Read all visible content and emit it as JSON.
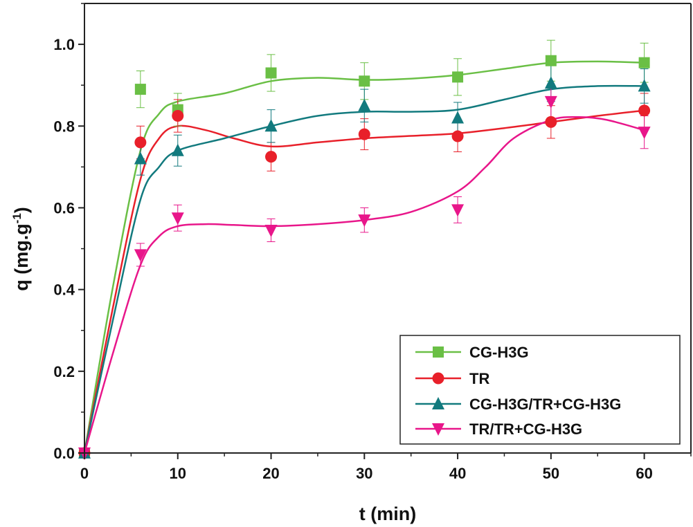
{
  "chart_data": {
    "type": "scatter",
    "xlabel": "t (min)",
    "ylabel_main": "q (mg.g",
    "ylabel_sup": "-1",
    "ylabel_close": ")",
    "xlim": [
      0,
      65
    ],
    "ylim": [
      0,
      1.1
    ],
    "xticks": [
      0,
      10,
      20,
      30,
      40,
      50,
      60
    ],
    "yticks": [
      0.0,
      0.2,
      0.4,
      0.6,
      0.8,
      1.0
    ],
    "ytick_labels": [
      "0.0",
      "0.2",
      "0.4",
      "0.6",
      "0.8",
      "1.0"
    ],
    "legend_position": "bottom-right",
    "series": [
      {
        "name": "CG-H3G",
        "color": "#6abf45",
        "marker": "square",
        "x": [
          0,
          6,
          10,
          20,
          30,
          40,
          50,
          60
        ],
        "y": [
          0.0,
          0.89,
          0.84,
          0.93,
          0.91,
          0.92,
          0.96,
          0.955
        ],
        "err": [
          0,
          0.045,
          0.04,
          0.045,
          0.045,
          0.045,
          0.05,
          0.048
        ],
        "fit_x": [
          0,
          3,
          6,
          8,
          10,
          15,
          20,
          25,
          30,
          35,
          40,
          45,
          50,
          55,
          60
        ],
        "fit_y": [
          0,
          0.4,
          0.74,
          0.83,
          0.86,
          0.88,
          0.91,
          0.918,
          0.913,
          0.916,
          0.925,
          0.94,
          0.955,
          0.958,
          0.955
        ]
      },
      {
        "name": "TR",
        "color": "#e8202a",
        "marker": "circle",
        "x": [
          0,
          6,
          10,
          20,
          30,
          40,
          50,
          60
        ],
        "y": [
          0.0,
          0.76,
          0.825,
          0.725,
          0.78,
          0.775,
          0.81,
          0.838
        ],
        "err": [
          0,
          0.04,
          0.04,
          0.035,
          0.038,
          0.038,
          0.04,
          0.042
        ],
        "fit_x": [
          0,
          3,
          6,
          8,
          10,
          13,
          16,
          20,
          25,
          30,
          35,
          40,
          45,
          50,
          55,
          60
        ],
        "fit_y": [
          0,
          0.35,
          0.67,
          0.77,
          0.8,
          0.79,
          0.77,
          0.75,
          0.76,
          0.77,
          0.776,
          0.782,
          0.795,
          0.81,
          0.825,
          0.838
        ]
      },
      {
        "name": "CG-H3G/TR+CG-H3G",
        "color": "#127a7e",
        "marker": "triangle-up",
        "x": [
          0,
          6,
          10,
          20,
          30,
          40,
          50,
          60
        ],
        "y": [
          0.0,
          0.72,
          0.74,
          0.8,
          0.85,
          0.82,
          0.905,
          0.898
        ],
        "err": [
          0,
          0.04,
          0.038,
          0.04,
          0.04,
          0.038,
          0.045,
          0.042
        ],
        "fit_x": [
          0,
          3,
          6,
          8,
          10,
          15,
          20,
          25,
          30,
          35,
          40,
          45,
          50,
          55,
          60
        ],
        "fit_y": [
          0,
          0.32,
          0.62,
          0.7,
          0.74,
          0.77,
          0.8,
          0.825,
          0.835,
          0.835,
          0.84,
          0.865,
          0.89,
          0.898,
          0.898
        ]
      },
      {
        "name": "TR/TR+CG-H3G",
        "color": "#e8168a",
        "marker": "triangle-down",
        "x": [
          0,
          6,
          10,
          20,
          30,
          40,
          50,
          60
        ],
        "y": [
          0.0,
          0.485,
          0.575,
          0.545,
          0.57,
          0.595,
          0.86,
          0.785
        ],
        "err": [
          0,
          0.028,
          0.032,
          0.028,
          0.03,
          0.032,
          0.04,
          0.04
        ],
        "fit_x": [
          0,
          3,
          6,
          8,
          10,
          13,
          16,
          20,
          25,
          30,
          35,
          40,
          43,
          46,
          50,
          53,
          56,
          60
        ],
        "fit_y": [
          0,
          0.24,
          0.46,
          0.53,
          0.555,
          0.56,
          0.558,
          0.555,
          0.56,
          0.57,
          0.59,
          0.64,
          0.7,
          0.77,
          0.815,
          0.822,
          0.815,
          0.79
        ]
      }
    ]
  }
}
